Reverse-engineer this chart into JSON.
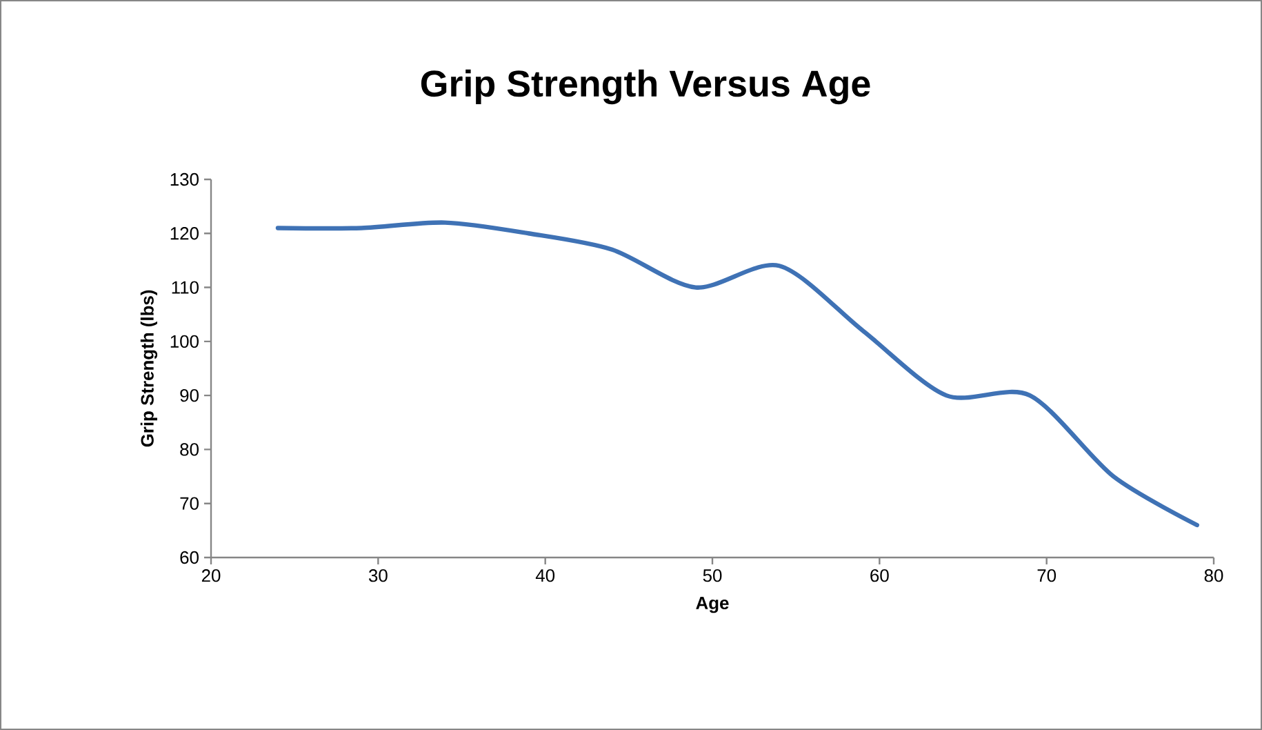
{
  "chart_data": {
    "type": "line",
    "title": "Grip Strength Versus Age",
    "xlabel": "Age",
    "ylabel": "Grip Strength (lbs)",
    "x": [
      24,
      29,
      34,
      39,
      44,
      49,
      54,
      59,
      64,
      69,
      74,
      79
    ],
    "series": [
      {
        "color": "#3f72b5",
        "values": [
          121,
          121,
          122,
          120,
          117,
          110,
          114,
          102,
          90,
          90,
          75,
          66
        ]
      }
    ],
    "xlim": [
      20,
      80
    ],
    "xticks": [
      20,
      30,
      40,
      50,
      60,
      70,
      80
    ],
    "ylim": [
      60,
      130
    ],
    "yticks": [
      60,
      70,
      80,
      90,
      100,
      110,
      120,
      130
    ],
    "grid": false,
    "legend": false,
    "marker": "none",
    "line_style": "solid"
  }
}
